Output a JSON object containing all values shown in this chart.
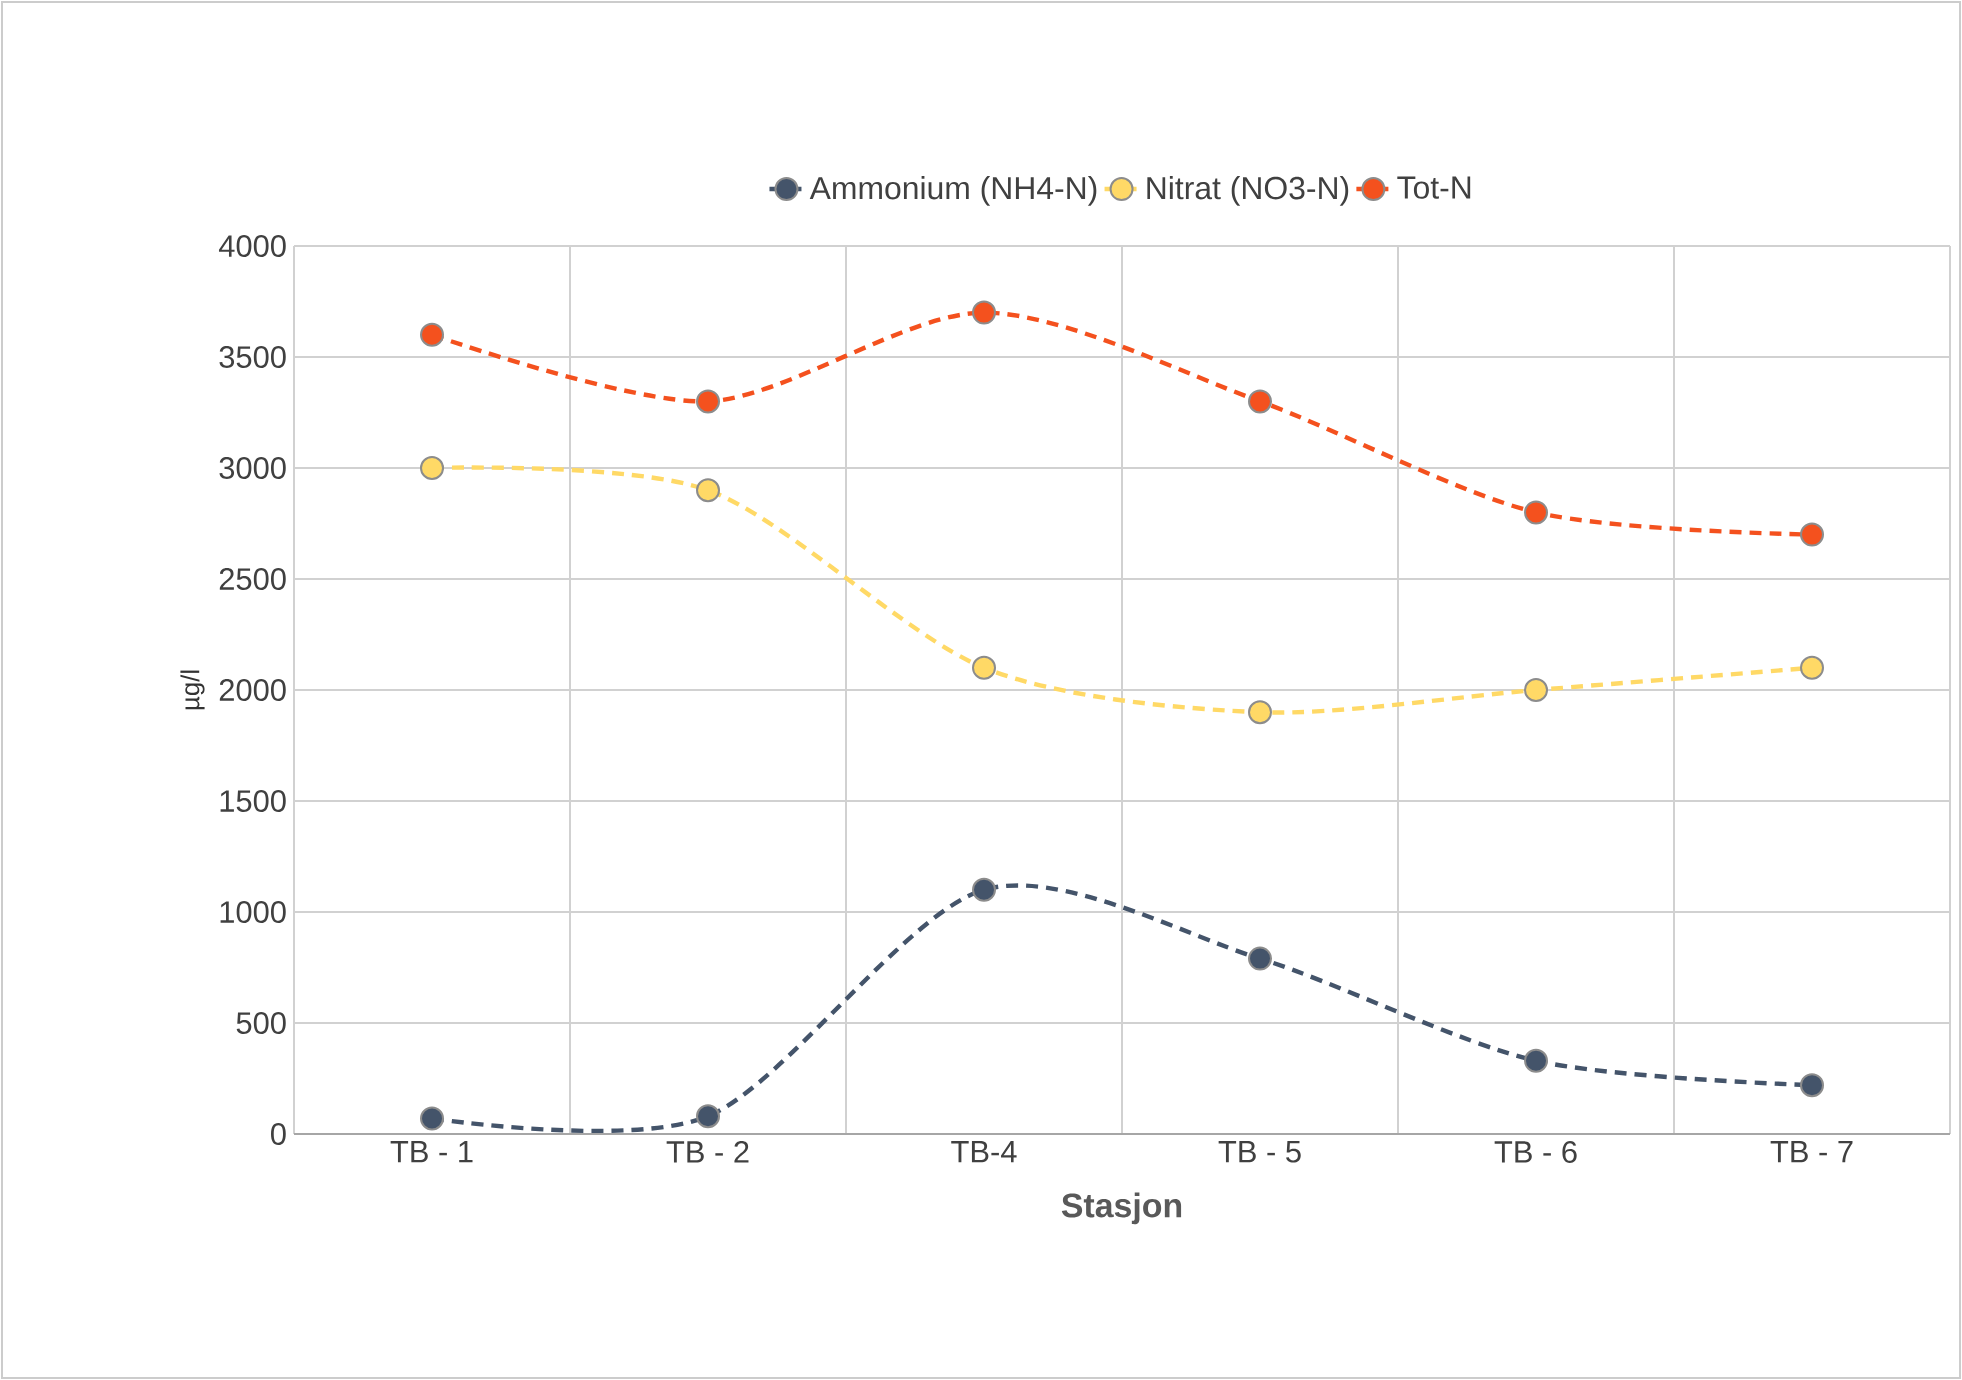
{
  "chart_data": {
    "type": "line",
    "xlabel": "Stasjon",
    "ylabel": "µg/l",
    "categories": [
      "TB - 1",
      "TB - 2",
      "TB-4",
      "TB - 5",
      "TB - 6",
      "TB - 7"
    ],
    "series": [
      {
        "name": "Ammonium (NH4-N)",
        "color": "#44546a",
        "values": [
          70,
          80,
          1100,
          790,
          330,
          220
        ]
      },
      {
        "name": "Nitrat (NO3-N)",
        "color": "#ffd966",
        "values": [
          3000,
          2900,
          2100,
          1900,
          2000,
          2100
        ]
      },
      {
        "name": "Tot-N",
        "color": "#f4511e",
        "values": [
          3600,
          3300,
          3700,
          3300,
          2800,
          2700
        ]
      }
    ],
    "ylim": [
      0,
      4000
    ],
    "yticks": [
      0,
      500,
      1000,
      1500,
      2000,
      2500,
      3000,
      3500,
      4000
    ],
    "grid": true,
    "legend": "top",
    "marker": "circle",
    "line_style": "dashed"
  }
}
